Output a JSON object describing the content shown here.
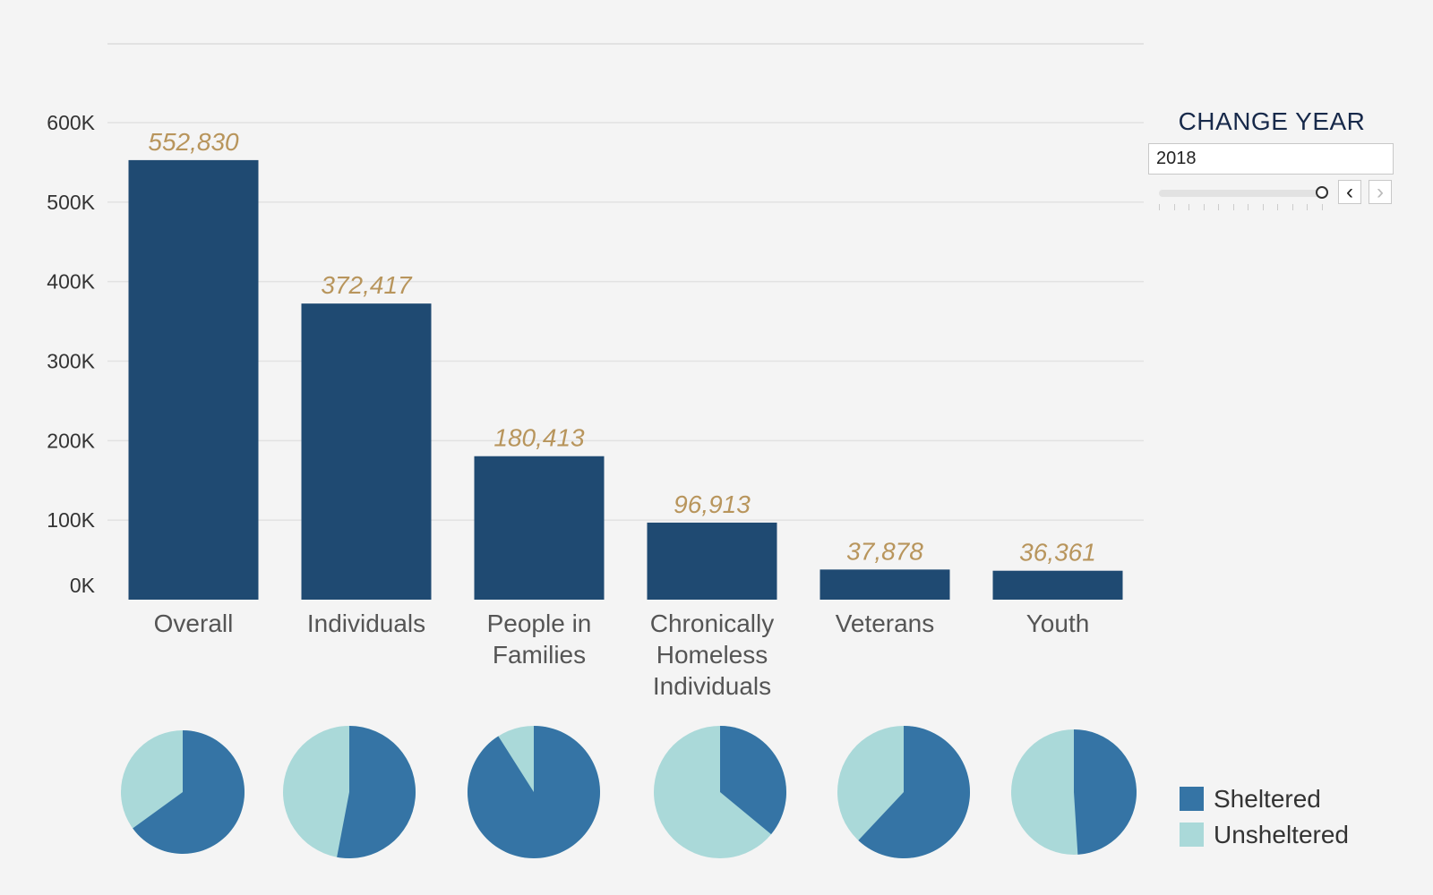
{
  "chart_data": {
    "type": "bar",
    "categories": [
      "Overall",
      "Individuals",
      "People in Families",
      "Chronically Homeless Individuals",
      "Veterans",
      "Youth"
    ],
    "category_label_lines": [
      [
        "Overall"
      ],
      [
        "Individuals"
      ],
      [
        "People in",
        "Families"
      ],
      [
        "Chronically",
        "Homeless",
        "Individuals"
      ],
      [
        "Veterans"
      ],
      [
        "Youth"
      ]
    ],
    "values": [
      552830,
      372417,
      180413,
      96913,
      37878,
      36361
    ],
    "value_labels": [
      "552,830",
      "372,417",
      "180,413",
      "96,913",
      "37,878",
      "36,361"
    ],
    "ylim": [
      0,
      600000
    ],
    "yticks": [
      0,
      100000,
      200000,
      300000,
      400000,
      500000,
      600000
    ],
    "ytick_labels": [
      "0K",
      "100K",
      "200K",
      "300K",
      "400K",
      "500K",
      "600K"
    ],
    "grid": true,
    "bar_color": "#1f4a72",
    "label_color": "#b8955c",
    "pies": {
      "type": "pie",
      "legend_position": "right",
      "series": [
        "Sheltered",
        "Unsheltered"
      ],
      "colors": [
        "#3574a5",
        "#aad9d9"
      ],
      "sheltered_share": [
        0.65,
        0.53,
        0.91,
        0.36,
        0.62,
        0.49
      ]
    }
  },
  "legend": {
    "items": [
      {
        "label": "Sheltered",
        "color": "#3574a5"
      },
      {
        "label": "Unsheltered",
        "color": "#aad9d9"
      }
    ]
  },
  "year_control": {
    "title": "CHANGE YEAR",
    "value": "2018",
    "prev_symbol": "‹",
    "next_symbol": "›"
  }
}
